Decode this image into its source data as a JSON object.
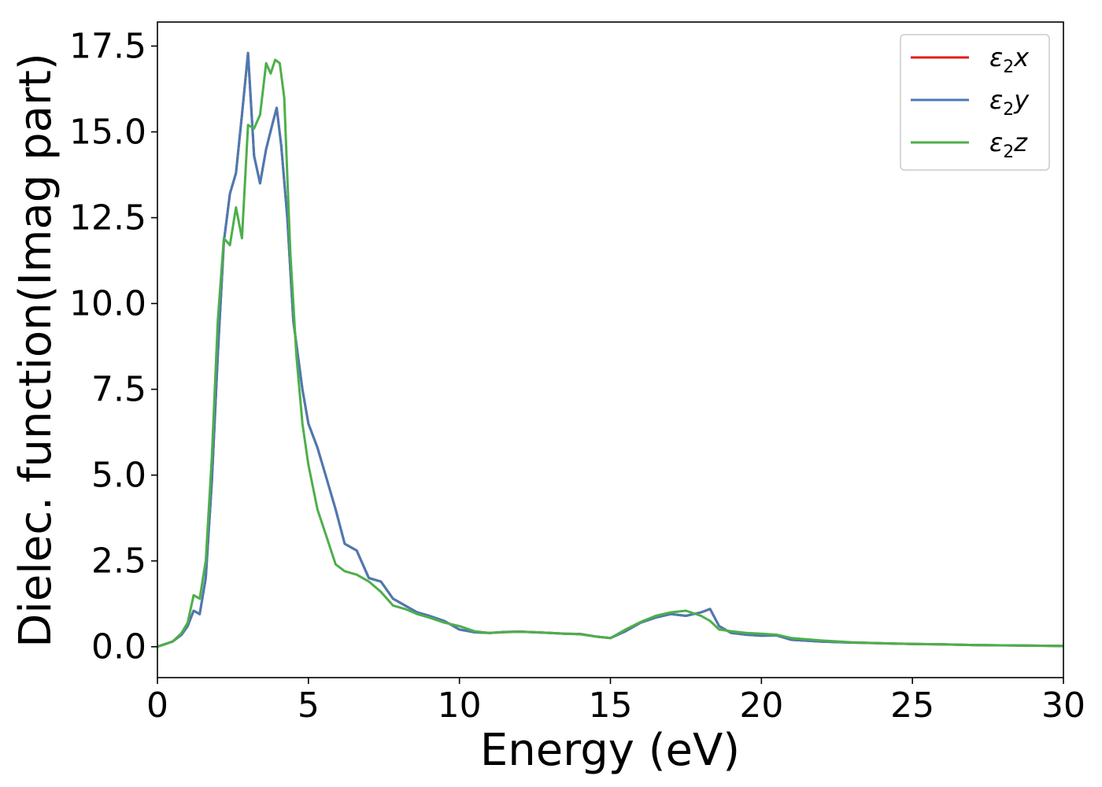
{
  "chart_data": {
    "type": "line",
    "title": "",
    "xlabel": "Energy (eV)",
    "ylabel": "Dielec. function(Imag part)",
    "xlim": [
      0,
      30
    ],
    "ylim": [
      -0.9,
      18.2
    ],
    "xticks": [
      0,
      5,
      10,
      15,
      20,
      25,
      30
    ],
    "xtick_labels": [
      "0",
      "5",
      "10",
      "15",
      "20",
      "25",
      "30"
    ],
    "yticks": [
      0,
      2.5,
      5,
      7.5,
      10,
      12.5,
      15,
      17.5
    ],
    "ytick_labels": [
      "0.0",
      "2.5",
      "5.0",
      "7.5",
      "10.0",
      "12.5",
      "15.0",
      "17.5"
    ],
    "grid": false,
    "legend": "top-right",
    "series": [
      {
        "name": "ε₂x",
        "legend_base": "ε",
        "legend_sub": "2",
        "legend_suffix": "x",
        "color": "#e41a1c",
        "x": [
          0,
          0.5,
          0.8,
          1.0,
          1.2,
          1.4,
          1.6,
          1.8,
          2.0,
          2.2,
          2.4,
          2.6,
          2.8,
          3.0,
          3.2,
          3.4,
          3.6,
          3.8,
          3.95,
          4.1,
          4.3,
          4.5,
          4.8,
          5.0,
          5.3,
          5.6,
          5.9,
          6.2,
          6.6,
          7.0,
          7.4,
          7.8,
          8.2,
          8.6,
          9.0,
          9.5,
          10.0,
          10.5,
          11.0,
          11.5,
          12.0,
          12.5,
          13.0,
          13.5,
          14.0,
          14.5,
          15.0,
          15.5,
          16.0,
          16.5,
          17.0,
          17.5,
          18.0,
          18.3,
          18.6,
          19.0,
          19.5,
          20.0,
          20.5,
          21.0,
          22.0,
          23.0,
          24.0,
          25.0,
          26.0,
          27.0,
          28.0,
          29.0,
          30.0
        ],
        "values": [
          0.0,
          0.15,
          0.35,
          0.6,
          1.05,
          0.95,
          2.0,
          4.8,
          8.5,
          11.8,
          13.2,
          13.8,
          15.5,
          17.3,
          14.3,
          13.5,
          14.5,
          15.2,
          15.7,
          14.6,
          12.5,
          9.5,
          7.5,
          6.5,
          5.8,
          4.9,
          4.0,
          3.0,
          2.8,
          2.0,
          1.9,
          1.4,
          1.2,
          1.0,
          0.9,
          0.75,
          0.5,
          0.42,
          0.4,
          0.43,
          0.44,
          0.42,
          0.4,
          0.38,
          0.37,
          0.3,
          0.25,
          0.45,
          0.7,
          0.85,
          0.95,
          0.9,
          1.0,
          1.1,
          0.6,
          0.4,
          0.35,
          0.32,
          0.33,
          0.2,
          0.15,
          0.12,
          0.1,
          0.08,
          0.07,
          0.05,
          0.04,
          0.03,
          0.02
        ]
      },
      {
        "name": "ε₂y",
        "legend_base": "ε",
        "legend_sub": "2",
        "legend_suffix": "y",
        "color": "#4a7ab3",
        "x": [
          0,
          0.5,
          0.8,
          1.0,
          1.2,
          1.4,
          1.6,
          1.8,
          2.0,
          2.2,
          2.4,
          2.6,
          2.8,
          3.0,
          3.2,
          3.4,
          3.6,
          3.8,
          3.95,
          4.1,
          4.3,
          4.5,
          4.8,
          5.0,
          5.3,
          5.6,
          5.9,
          6.2,
          6.6,
          7.0,
          7.4,
          7.8,
          8.2,
          8.6,
          9.0,
          9.5,
          10.0,
          10.5,
          11.0,
          11.5,
          12.0,
          12.5,
          13.0,
          13.5,
          14.0,
          14.5,
          15.0,
          15.5,
          16.0,
          16.5,
          17.0,
          17.5,
          18.0,
          18.3,
          18.6,
          19.0,
          19.5,
          20.0,
          20.5,
          21.0,
          22.0,
          23.0,
          24.0,
          25.0,
          26.0,
          27.0,
          28.0,
          29.0,
          30.0
        ],
        "values": [
          0.0,
          0.15,
          0.35,
          0.6,
          1.05,
          0.95,
          2.0,
          4.8,
          8.5,
          11.8,
          13.2,
          13.8,
          15.5,
          17.3,
          14.3,
          13.5,
          14.5,
          15.2,
          15.7,
          14.6,
          12.5,
          9.5,
          7.5,
          6.5,
          5.8,
          4.9,
          4.0,
          3.0,
          2.8,
          2.0,
          1.9,
          1.4,
          1.2,
          1.0,
          0.9,
          0.75,
          0.5,
          0.42,
          0.4,
          0.43,
          0.44,
          0.42,
          0.4,
          0.38,
          0.37,
          0.3,
          0.25,
          0.45,
          0.7,
          0.85,
          0.95,
          0.9,
          1.0,
          1.1,
          0.6,
          0.4,
          0.35,
          0.32,
          0.33,
          0.2,
          0.15,
          0.12,
          0.1,
          0.08,
          0.07,
          0.05,
          0.04,
          0.03,
          0.02
        ]
      },
      {
        "name": "ε₂z",
        "legend_base": "ε",
        "legend_sub": "2",
        "legend_suffix": "z",
        "color": "#4daf4a",
        "x": [
          0,
          0.5,
          0.8,
          1.0,
          1.2,
          1.4,
          1.6,
          1.8,
          2.0,
          2.2,
          2.4,
          2.6,
          2.8,
          3.0,
          3.2,
          3.4,
          3.6,
          3.75,
          3.9,
          4.05,
          4.2,
          4.4,
          4.6,
          4.8,
          5.0,
          5.3,
          5.6,
          5.9,
          6.2,
          6.6,
          7.0,
          7.4,
          7.8,
          8.2,
          8.6,
          9.0,
          9.5,
          10.0,
          10.5,
          11.0,
          11.5,
          12.0,
          12.5,
          13.0,
          13.5,
          14.0,
          14.5,
          15.0,
          15.5,
          16.0,
          16.5,
          17.0,
          17.5,
          18.0,
          18.3,
          18.6,
          19.0,
          19.5,
          20.0,
          20.5,
          21.0,
          22.0,
          23.0,
          24.0,
          25.0,
          26.0,
          27.0,
          28.0,
          29.0,
          30.0
        ],
        "values": [
          0.0,
          0.15,
          0.4,
          0.7,
          1.5,
          1.4,
          2.5,
          5.5,
          9.5,
          11.9,
          11.7,
          12.8,
          11.9,
          15.2,
          15.1,
          15.5,
          17.0,
          16.7,
          17.1,
          17.0,
          16.0,
          11.5,
          8.5,
          6.5,
          5.3,
          4.0,
          3.2,
          2.4,
          2.2,
          2.1,
          1.9,
          1.6,
          1.2,
          1.1,
          0.95,
          0.85,
          0.7,
          0.6,
          0.45,
          0.4,
          0.42,
          0.44,
          0.42,
          0.4,
          0.38,
          0.36,
          0.3,
          0.25,
          0.5,
          0.72,
          0.9,
          1.0,
          1.05,
          0.9,
          0.75,
          0.5,
          0.45,
          0.4,
          0.38,
          0.35,
          0.25,
          0.18,
          0.13,
          0.1,
          0.08,
          0.07,
          0.05,
          0.04,
          0.03,
          0.02
        ]
      }
    ]
  }
}
